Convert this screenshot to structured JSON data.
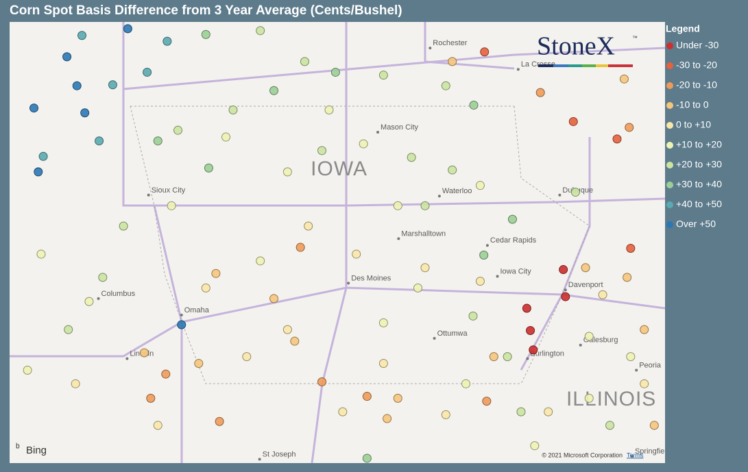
{
  "header": {
    "title": "Corn Spot Basis Difference from 3 Year Average (Cents/Bushel)"
  },
  "logo": {
    "text": "StoneX",
    "mark": "™"
  },
  "legend": {
    "title": "Legend",
    "items": [
      {
        "label": "Under -30",
        "color": "#cc2f2f",
        "points": [
          [
            -90.61,
            41.73
          ],
          [
            -90.58,
            41.45
          ],
          [
            -91.12,
            41.33
          ],
          [
            -91.07,
            41.1
          ],
          [
            -91.03,
            40.9
          ]
        ]
      },
      {
        "label": "-30 to -20",
        "color": "#e4623d",
        "points": [
          [
            -89.86,
            43.08
          ],
          [
            -90.47,
            43.26
          ],
          [
            -91.71,
            43.98
          ],
          [
            -89.67,
            41.95
          ]
        ]
      },
      {
        "label": "-20 to -10",
        "color": "#ee9b5a",
        "points": [
          [
            -94.28,
            41.96
          ],
          [
            -96.16,
            40.65
          ],
          [
            -93.98,
            40.57
          ],
          [
            -93.35,
            40.42
          ],
          [
            -90.93,
            43.56
          ],
          [
            -89.69,
            43.2
          ],
          [
            -95.41,
            40.16
          ],
          [
            -91.68,
            40.37
          ],
          [
            -96.37,
            40.4
          ]
        ]
      },
      {
        "label": "-10 to 0",
        "color": "#f6c57c",
        "points": [
          [
            -95.46,
            41.69
          ],
          [
            -94.65,
            41.43
          ],
          [
            -94.36,
            40.99
          ],
          [
            -95.7,
            40.76
          ],
          [
            -96.46,
            40.87
          ],
          [
            -93.07,
            40.19
          ],
          [
            -90.3,
            41.75
          ],
          [
            -89.72,
            41.65
          ],
          [
            -89.48,
            41.11
          ],
          [
            -92.92,
            40.4
          ],
          [
            -91.58,
            40.83
          ],
          [
            -89.34,
            40.12
          ],
          [
            -92.16,
            43.88
          ],
          [
            -89.76,
            43.7
          ]
        ]
      },
      {
        "label": "0 to +10",
        "color": "#f9e7a8",
        "points": [
          [
            -95.6,
            41.54
          ],
          [
            -94.17,
            42.18
          ],
          [
            -93.5,
            41.89
          ],
          [
            -92.54,
            41.75
          ],
          [
            -91.77,
            41.61
          ],
          [
            -95.03,
            40.83
          ],
          [
            -93.69,
            40.26
          ],
          [
            -92.25,
            40.23
          ],
          [
            -97.42,
            40.55
          ],
          [
            -90.06,
            41.47
          ],
          [
            -89.48,
            40.55
          ],
          [
            -96.27,
            40.12
          ],
          [
            -93.12,
            40.76
          ],
          [
            -90.82,
            40.26
          ],
          [
            -94.46,
            41.11
          ]
        ]
      },
      {
        "label": "+10 to +20",
        "color": "#eef3b4",
        "points": [
          [
            -95.32,
            43.1
          ],
          [
            -94.46,
            42.74
          ],
          [
            -93.4,
            43.03
          ],
          [
            -92.92,
            42.39
          ],
          [
            -91.77,
            42.6
          ],
          [
            -94.84,
            41.82
          ],
          [
            -96.08,
            42.39
          ],
          [
            -97.9,
            41.89
          ],
          [
            -97.23,
            41.4
          ],
          [
            -92.64,
            41.54
          ],
          [
            -93.12,
            41.18
          ],
          [
            -90.25,
            41.04
          ],
          [
            -91.97,
            40.55
          ],
          [
            -90.25,
            40.4
          ],
          [
            -98.09,
            40.69
          ],
          [
            -91.01,
            39.91
          ],
          [
            -89.67,
            40.83
          ],
          [
            -93.88,
            43.38
          ]
        ]
      },
      {
        "label": "+20 to +30",
        "color": "#cbe4a2",
        "points": [
          [
            -94.84,
            44.2
          ],
          [
            -94.22,
            43.88
          ],
          [
            -93.12,
            43.74
          ],
          [
            -92.25,
            43.63
          ],
          [
            -95.22,
            43.38
          ],
          [
            -95.99,
            43.17
          ],
          [
            -93.98,
            42.96
          ],
          [
            -92.73,
            42.89
          ],
          [
            -92.16,
            42.76
          ],
          [
            -96.75,
            42.18
          ],
          [
            -97.04,
            41.65
          ],
          [
            -91.87,
            41.25
          ],
          [
            -91.39,
            40.83
          ],
          [
            -92.54,
            42.39
          ],
          [
            -90.44,
            42.53
          ],
          [
            -97.52,
            41.11
          ],
          [
            -91.2,
            40.26
          ],
          [
            -89.96,
            40.12
          ]
        ]
      },
      {
        "label": "+30 to +40",
        "color": "#9ccf97",
        "points": [
          [
            -95.6,
            44.16
          ],
          [
            -94.65,
            43.58
          ],
          [
            -93.79,
            43.77
          ],
          [
            -91.86,
            43.43
          ],
          [
            -91.72,
            41.88
          ],
          [
            -95.56,
            42.78
          ],
          [
            -96.27,
            43.06
          ],
          [
            -91.32,
            42.25
          ],
          [
            -93.35,
            39.78
          ]
        ]
      },
      {
        "label": "+40 to +50",
        "color": "#5aaab0",
        "points": [
          [
            -97.33,
            44.15
          ],
          [
            -96.9,
            43.64
          ],
          [
            -97.09,
            43.06
          ],
          [
            -97.87,
            42.9
          ],
          [
            -96.14,
            44.09
          ],
          [
            -96.42,
            43.77
          ]
        ]
      },
      {
        "label": "Over +50",
        "color": "#2b78b4",
        "points": [
          [
            -97.54,
            43.93
          ],
          [
            -97.4,
            43.63
          ],
          [
            -98.0,
            43.4
          ],
          [
            -97.29,
            43.35
          ],
          [
            -97.94,
            42.74
          ],
          [
            -95.94,
            41.16
          ],
          [
            -96.69,
            44.22
          ]
        ]
      }
    ]
  },
  "map": {
    "lon_range": [
      -98.34,
      -89.19
    ],
    "lat_range": [
      39.73,
      44.29
    ],
    "regions": [
      {
        "name": "IOWA",
        "lon": -93.74,
        "lat": 42.76
      },
      {
        "name": "ILLINOIS",
        "lon": -89.94,
        "lat": 40.38
      }
    ],
    "places": [
      {
        "name": "Rochester",
        "lon": -92.47,
        "lat": 44.02
      },
      {
        "name": "La Crosse",
        "lon": -91.24,
        "lat": 43.8
      },
      {
        "name": "Mason City",
        "lon": -93.2,
        "lat": 43.15
      },
      {
        "name": "Sioux City",
        "lon": -96.4,
        "lat": 42.5
      },
      {
        "name": "Waterloo",
        "lon": -92.34,
        "lat": 42.49
      },
      {
        "name": "Dubuque",
        "lon": -90.66,
        "lat": 42.5
      },
      {
        "name": "Marshalltown",
        "lon": -92.91,
        "lat": 42.05
      },
      {
        "name": "Cedar Rapids",
        "lon": -91.67,
        "lat": 41.98
      },
      {
        "name": "Iowa City",
        "lon": -91.53,
        "lat": 41.66
      },
      {
        "name": "Des Moines",
        "lon": -93.61,
        "lat": 41.59
      },
      {
        "name": "Davenport",
        "lon": -90.58,
        "lat": 41.52
      },
      {
        "name": "Omaha",
        "lon": -95.94,
        "lat": 41.26
      },
      {
        "name": "Columbus",
        "lon": -97.1,
        "lat": 41.43
      },
      {
        "name": "Lincoln",
        "lon": -96.7,
        "lat": 40.81
      },
      {
        "name": "Ottumwa",
        "lon": -92.41,
        "lat": 41.02
      },
      {
        "name": "Burlington",
        "lon": -91.11,
        "lat": 40.81
      },
      {
        "name": "Galesburg",
        "lon": -90.37,
        "lat": 40.95
      },
      {
        "name": "Peoria",
        "lon": -89.59,
        "lat": 40.69
      },
      {
        "name": "St Joseph",
        "lon": -94.85,
        "lat": 39.77
      },
      {
        "name": "Springfield",
        "lon": -89.65,
        "lat": 39.8
      }
    ]
  },
  "footer": {
    "provider": "Bing",
    "copyright": "© 2021 Microsoft Corporation",
    "terms": "Terms"
  }
}
